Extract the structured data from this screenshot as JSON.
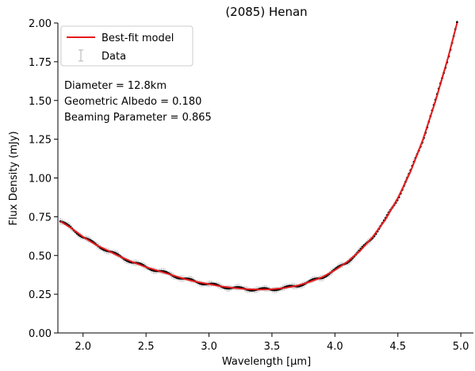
{
  "chart_data": {
    "type": "line",
    "title": "(2085) Henan",
    "xlabel": "Wavelength [μm]",
    "ylabel": "Flux Density (mJy)",
    "xlim": [
      1.8,
      5.1
    ],
    "ylim": [
      0.0,
      2.0
    ],
    "xticks": [
      2.0,
      2.5,
      3.0,
      3.5,
      4.0,
      4.5,
      5.0
    ],
    "xtick_labels": [
      "2.0",
      "2.5",
      "3.0",
      "3.5",
      "4.0",
      "4.5",
      "5.0"
    ],
    "yticks": [
      0.0,
      0.25,
      0.5,
      0.75,
      1.0,
      1.25,
      1.5,
      1.75,
      2.0
    ],
    "ytick_labels": [
      "0.00",
      "0.25",
      "0.50",
      "0.75",
      "1.00",
      "1.25",
      "1.50",
      "1.75",
      "2.00"
    ],
    "grid": false,
    "legend_position": "upper-left",
    "annotations": [
      "Diameter = 12.8km",
      "Geometric Albedo = 0.180",
      "Beaming Parameter = 0.865"
    ],
    "series": [
      {
        "name": "Best-fit model",
        "kind": "line",
        "color": "#e41a1c",
        "x": [
          1.82,
          1.9,
          2.0,
          2.1,
          2.2,
          2.3,
          2.4,
          2.5,
          2.6,
          2.7,
          2.8,
          2.9,
          3.0,
          3.1,
          3.2,
          3.3,
          3.4,
          3.5,
          3.6,
          3.7,
          3.8,
          3.9,
          4.0,
          4.1,
          4.2,
          4.3,
          4.4,
          4.5,
          4.6,
          4.7,
          4.8,
          4.9,
          4.97
        ],
        "y": [
          0.72,
          0.68,
          0.62,
          0.57,
          0.53,
          0.49,
          0.455,
          0.425,
          0.4,
          0.375,
          0.35,
          0.33,
          0.315,
          0.3,
          0.29,
          0.283,
          0.28,
          0.282,
          0.29,
          0.305,
          0.33,
          0.36,
          0.405,
          0.46,
          0.53,
          0.62,
          0.73,
          0.87,
          1.04,
          1.25,
          1.5,
          1.78,
          2.0
        ]
      },
      {
        "name": "Data",
        "kind": "errorbar",
        "color": "#000000",
        "error_color": "#b0b0b0"
      }
    ]
  }
}
